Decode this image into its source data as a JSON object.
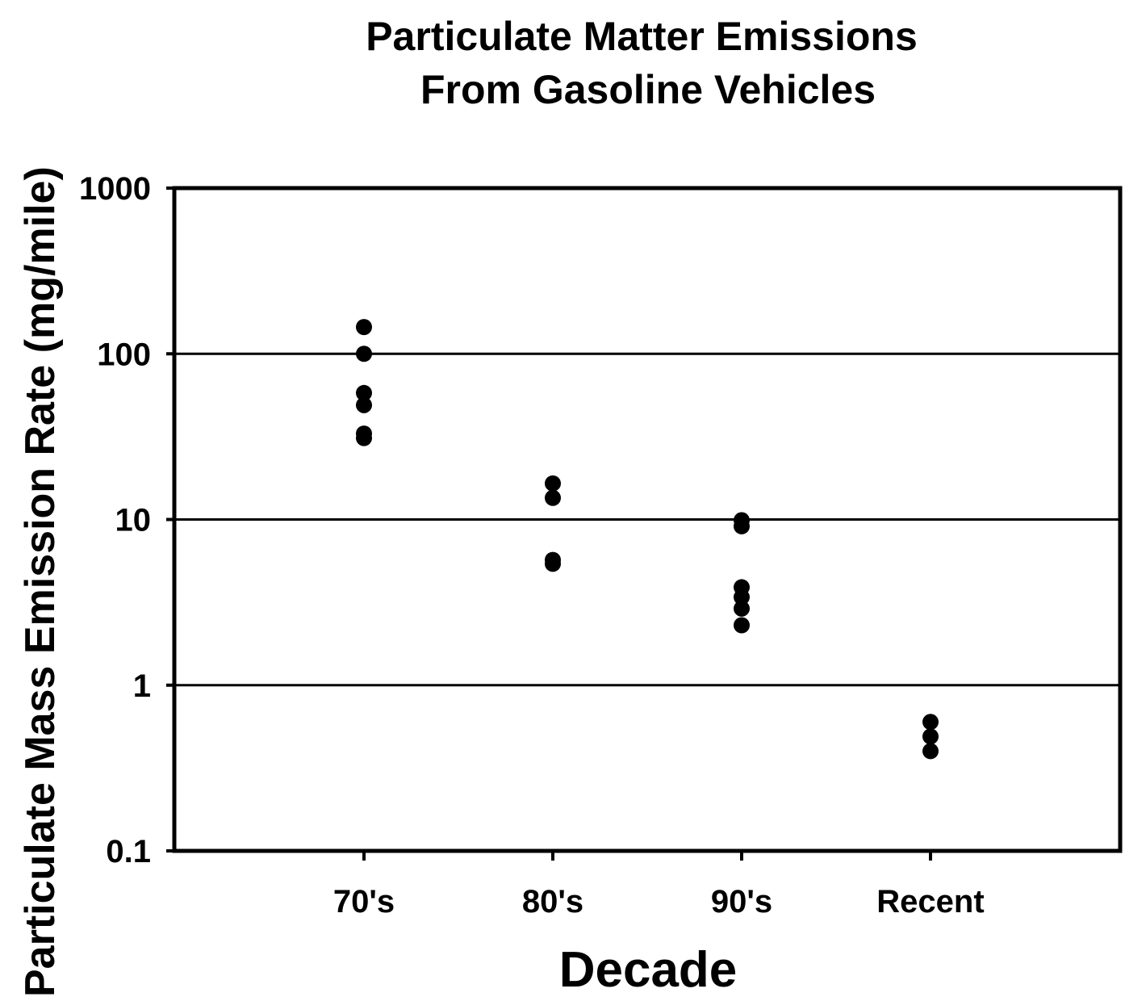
{
  "chart_data": {
    "type": "scatter",
    "title": [
      "Particulate Matter Emissions",
      "From Gasoline Vehicles"
    ],
    "xlabel": "Decade",
    "ylabel": "Particulate Mass Emission Rate (mg/mile)",
    "yscale": "log",
    "ylim": [
      0.1,
      1000
    ],
    "yticks": [
      "0.1",
      "1",
      "10",
      "100",
      "1000"
    ],
    "grid": "horizontal at 1, 10, 100",
    "legend": "none",
    "marker_color": "#000000",
    "categories": [
      "70's",
      "80's",
      "90's",
      "Recent"
    ],
    "points": [
      {
        "x": "70's",
        "y": 145
      },
      {
        "x": "70's",
        "y": 100
      },
      {
        "x": "70's",
        "y": 58
      },
      {
        "x": "70's",
        "y": 49
      },
      {
        "x": "70's",
        "y": 33
      },
      {
        "x": "70's",
        "y": 31
      },
      {
        "x": "80's",
        "y": 16.5
      },
      {
        "x": "80's",
        "y": 13.5
      },
      {
        "x": "80's",
        "y": 5.7
      },
      {
        "x": "80's",
        "y": 5.4
      },
      {
        "x": "90's",
        "y": 9.9
      },
      {
        "x": "90's",
        "y": 9.1
      },
      {
        "x": "90's",
        "y": 3.9
      },
      {
        "x": "90's",
        "y": 3.4
      },
      {
        "x": "90's",
        "y": 2.9
      },
      {
        "x": "90's",
        "y": 2.3
      },
      {
        "x": "Recent",
        "y": 0.6
      },
      {
        "x": "Recent",
        "y": 0.49
      },
      {
        "x": "Recent",
        "y": 0.4
      }
    ]
  }
}
